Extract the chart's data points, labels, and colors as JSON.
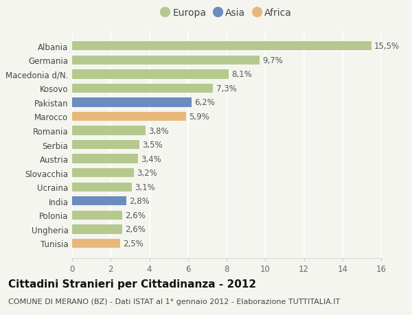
{
  "categories": [
    "Albania",
    "Germania",
    "Macedonia d/N.",
    "Kosovo",
    "Pakistan",
    "Marocco",
    "Romania",
    "Serbia",
    "Austria",
    "Slovacchia",
    "Ucraina",
    "India",
    "Polonia",
    "Ungheria",
    "Tunisia"
  ],
  "values": [
    15.5,
    9.7,
    8.1,
    7.3,
    6.2,
    5.9,
    3.8,
    3.5,
    3.4,
    3.2,
    3.1,
    2.8,
    2.6,
    2.6,
    2.5
  ],
  "labels": [
    "15,5%",
    "9,7%",
    "8,1%",
    "7,3%",
    "6,2%",
    "5,9%",
    "3,8%",
    "3,5%",
    "3,4%",
    "3,2%",
    "3,1%",
    "2,8%",
    "2,6%",
    "2,6%",
    "2,5%"
  ],
  "continents": [
    "Europa",
    "Europa",
    "Europa",
    "Europa",
    "Asia",
    "Africa",
    "Europa",
    "Europa",
    "Europa",
    "Europa",
    "Europa",
    "Asia",
    "Europa",
    "Europa",
    "Africa"
  ],
  "colors": {
    "Europa": "#b5c98e",
    "Asia": "#6b8cbf",
    "Africa": "#e8b87a"
  },
  "legend": [
    {
      "label": "Europa",
      "color": "#b5c98e"
    },
    {
      "label": "Asia",
      "color": "#6b8cbf"
    },
    {
      "label": "Africa",
      "color": "#e8b87a"
    }
  ],
  "xlim": [
    0,
    16
  ],
  "xticks": [
    0,
    2,
    4,
    6,
    8,
    10,
    12,
    14,
    16
  ],
  "title": "Cittadini Stranieri per Cittadinanza - 2012",
  "subtitle": "COMUNE DI MERANO (BZ) - Dati ISTAT al 1° gennaio 2012 - Elaborazione TUTTITALIA.IT",
  "background_color": "#f5f5f0",
  "grid_color": "#ffffff",
  "bar_height": 0.65,
  "label_fontsize": 8.5,
  "ytick_fontsize": 8.5,
  "xtick_fontsize": 8.5,
  "title_fontsize": 11,
  "subtitle_fontsize": 8,
  "legend_fontsize": 10
}
